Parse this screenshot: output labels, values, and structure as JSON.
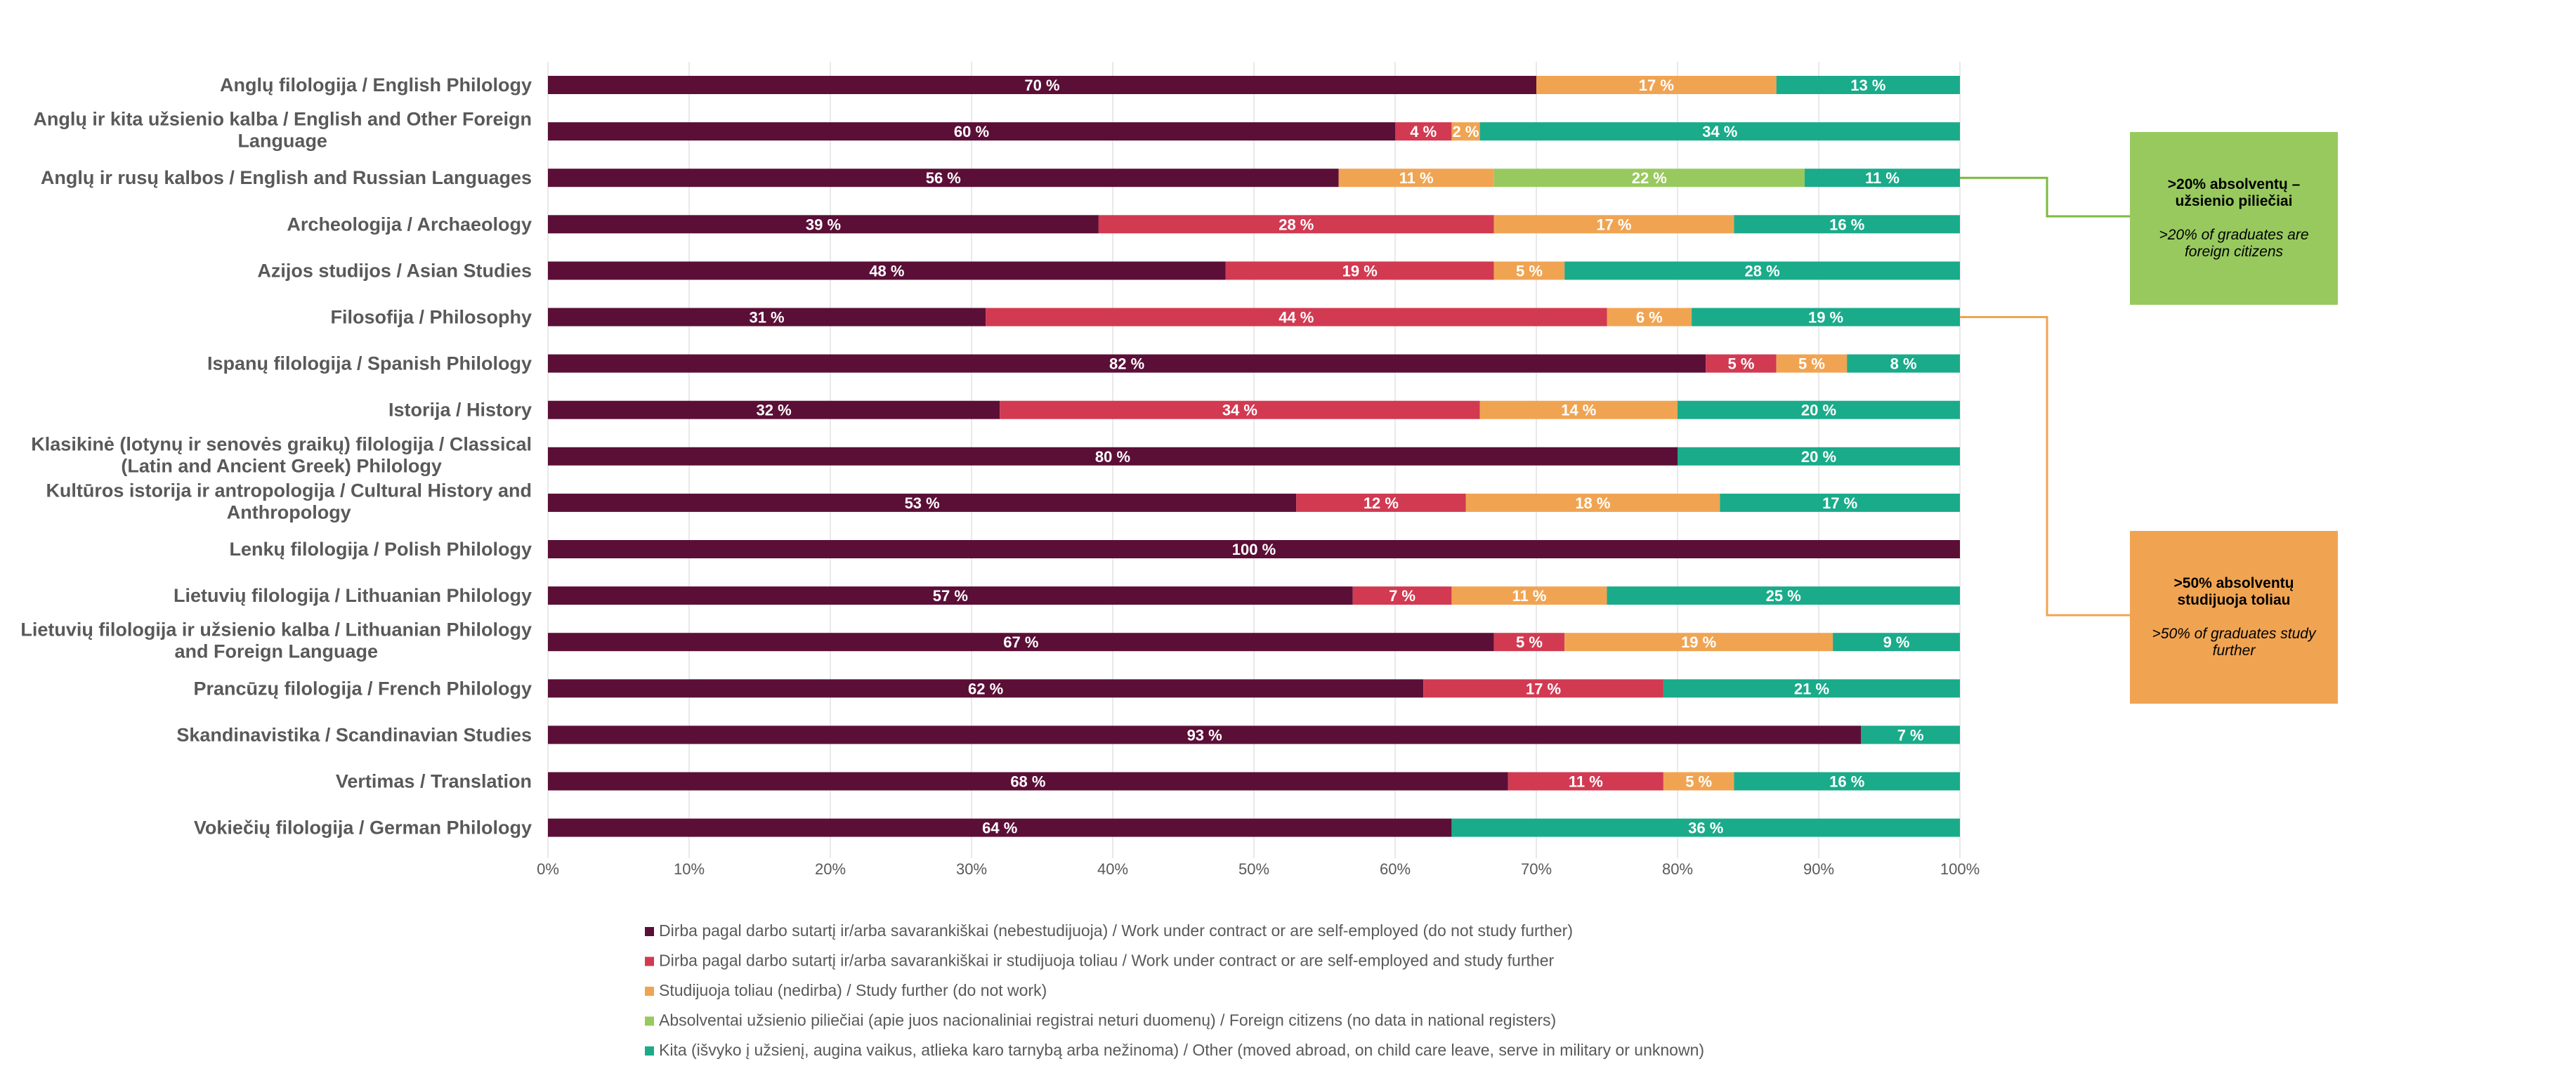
{
  "chart_data": {
    "type": "bar",
    "orientation": "horizontal",
    "stacked": true,
    "percent_scale": true,
    "categories": [
      "Anglų filologija / English Philology",
      "Anglų ir kita užsienio kalba / English and Other Foreign Language",
      "Anglų ir rusų kalbos / English and Russian Languages",
      "Archeologija / Archaeology",
      "Azijos studijos / Asian Studies",
      "Filosofija / Philosophy",
      "Ispanų filologija / Spanish Philology",
      "Istorija / History",
      "Klasikinė (lotynų ir senovės graikų) filologija / Classical (Latin and Ancient Greek) Philology",
      "Kultūros istorija ir antropologija / Cultural History and Anthropology",
      "Lenkų filologija / Polish Philology",
      "Lietuvių filologija / Lithuanian Philology",
      "Lietuvių filologija ir užsienio kalba / Lithuanian Philology and Foreign Language",
      "Prancūzų filologija / French Philology",
      "Skandinavistika / Scandinavian Studies",
      "Vertimas / Translation",
      "Vokiečių filologija / German Philology"
    ],
    "category_lines": [
      [
        "Anglų filologija / English Philology"
      ],
      [
        "Anglų ir kita užsienio kalba / English and Other Foreign",
        "Language"
      ],
      [
        "Anglų ir rusų kalbos / English and Russian Languages"
      ],
      [
        "Archeologija / Archaeology"
      ],
      [
        "Azijos studijos / Asian Studies"
      ],
      [
        "Filosofija / Philosophy"
      ],
      [
        "Ispanų filologija / Spanish Philology"
      ],
      [
        "Istorija / History"
      ],
      [
        "Klasikinė (lotynų ir senovės graikų) filologija / Classical",
        "(Latin and Ancient Greek) Philology"
      ],
      [
        "Kultūros istorija ir antropologija / Cultural History and",
        "Anthropology"
      ],
      [
        "Lenkų filologija / Polish Philology"
      ],
      [
        "Lietuvių filologija / Lithuanian Philology"
      ],
      [
        "Lietuvių filologija ir užsienio kalba / Lithuanian Philology",
        "and Foreign Language"
      ],
      [
        "Prancūzų filologija / French Philology"
      ],
      [
        "Skandinavistika / Scandinavian Studies"
      ],
      [
        "Vertimas / Translation"
      ],
      [
        "Vokiečių filologija / German Philology"
      ]
    ],
    "series": [
      {
        "name": "Dirba pagal darbo sutartį ir/arba savarankiškai (nebestudijuoja) / Work under contract or are self-employed (do not study further)",
        "color": "#5b0f37",
        "values": [
          70,
          60,
          56,
          39,
          48,
          31,
          82,
          32,
          80,
          53,
          100,
          57,
          67,
          62,
          93,
          68,
          64
        ]
      },
      {
        "name": "Dirba pagal darbo sutartį ir/arba savarankiškai  ir studijuoja toliau / Work under contract or are self-employed and study further",
        "color": "#d23a52",
        "values": [
          0,
          4,
          0,
          28,
          19,
          44,
          5,
          34,
          0,
          12,
          0,
          7,
          5,
          17,
          0,
          11,
          0
        ]
      },
      {
        "name": "Studijuoja toliau (nedirba) / Study further (do not work)",
        "color": "#f0a452",
        "values": [
          17,
          2,
          11,
          17,
          5,
          6,
          5,
          14,
          0,
          18,
          0,
          11,
          19,
          0,
          0,
          5,
          0
        ]
      },
      {
        "name": "Absolventai užsienio piliečiai (apie juos nacionaliniai registrai neturi duomenų) / Foreign citizens (no data in national registers)",
        "color": "#98c95e",
        "values": [
          0,
          0,
          22,
          0,
          0,
          0,
          0,
          0,
          0,
          0,
          0,
          0,
          0,
          0,
          0,
          0,
          0
        ]
      },
      {
        "name": "Kita (išvyko į užsienį, augina vaikus, atlieka karo tarnybą arba nežinoma) / Other (moved abroad, on child care leave, serve in military or unknown)",
        "color": "#1aab8a",
        "values": [
          13,
          34,
          11,
          16,
          28,
          19,
          8,
          20,
          20,
          17,
          0,
          25,
          9,
          21,
          7,
          16,
          36
        ]
      }
    ],
    "value_suffix": " %",
    "x_ticks": [
      "0%",
      "10%",
      "20%",
      "30%",
      "40%",
      "50%",
      "60%",
      "70%",
      "80%",
      "90%",
      "100%"
    ],
    "xlim": [
      0,
      100
    ],
    "grid": true,
    "legend_position": "bottom",
    "title": "",
    "xlabel": "",
    "ylabel": ""
  },
  "callouts": {
    "foreign": {
      "title_line1": ">20% absolventų –",
      "title_line2": "užsienio piliečiai",
      "sub_line1": ">20% of graduates are",
      "sub_line2": "foreign citizens",
      "color": "#98c95e",
      "line_color": "#7cba3f",
      "target_category_index": 2
    },
    "study": {
      "title_line1": ">50% absolventų",
      "title_line2": "studijuoja toliau",
      "sub_line1": ">50% of graduates study",
      "sub_line2": "further",
      "color": "#f0a452",
      "line_color": "#f0a452",
      "target_category_index": 5
    }
  }
}
